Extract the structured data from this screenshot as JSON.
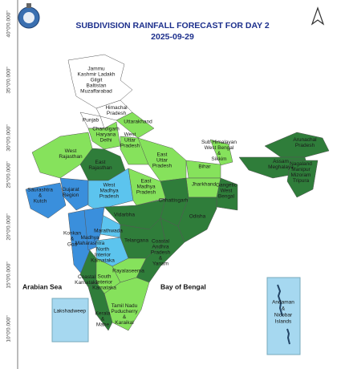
{
  "header": {
    "title": "SUBDIVISION RAINFALL FORECAST FOR DAY 2",
    "date": "2025-09-29"
  },
  "latitude_labels": [
    "40°0'0.000\"",
    "35°0'0.000\"",
    "30°0'0.000\"",
    "25°0'0.000\"",
    "20°0'0.000\"",
    "15°0'0.000\"",
    "10°0'0.000\""
  ],
  "seas": {
    "arabian": "Arabian Sea",
    "bengal": "Bay of Bengal"
  },
  "islands": {
    "lakshadweep": "Lakshadweep",
    "andaman": [
      "Andaman",
      "&",
      "Nicobar",
      "Islands"
    ]
  },
  "regions": [
    {
      "lines": [
        "Jammu",
        "Kashmir Ladakh",
        "Gilgit",
        "Baltistan",
        "Muzaffarabad"
      ]
    },
    {
      "lines": [
        "Himachal",
        "Pradesh"
      ]
    },
    {
      "lines": [
        "Punjab"
      ]
    },
    {
      "lines": [
        "Uttarakhand"
      ]
    },
    {
      "lines": [
        "Chandigarh",
        "Haryana",
        "Delhi"
      ]
    },
    {
      "lines": [
        "West",
        "Uttar",
        "Pradesh"
      ]
    },
    {
      "lines": [
        "West",
        "Rajasthan"
      ]
    },
    {
      "lines": [
        "East",
        "Rajasthan"
      ]
    },
    {
      "lines": [
        "East",
        "Uttar",
        "Pradesh"
      ]
    },
    {
      "lines": [
        "Bihar"
      ]
    },
    {
      "lines": [
        "Sub Himalayan",
        "West Bengal",
        "&",
        "Sikkim"
      ]
    },
    {
      "lines": [
        "Arunachal",
        "Pradesh"
      ]
    },
    {
      "lines": [
        "Assam",
        "Meghalaya"
      ]
    },
    {
      "lines": [
        "Nagaland",
        "Manipur",
        "Mizoram",
        "Tripura"
      ]
    },
    {
      "lines": [
        "Gujarat",
        "Region"
      ]
    },
    {
      "lines": [
        "Saurashtra",
        "&",
        "Kutch"
      ]
    },
    {
      "lines": [
        "West",
        "Madhya",
        "Pradesh"
      ]
    },
    {
      "lines": [
        "East",
        "Madhya",
        "Pradesh"
      ]
    },
    {
      "lines": [
        "Jharkhand"
      ]
    },
    {
      "lines": [
        "Gangetic",
        "West",
        "Bengal"
      ]
    },
    {
      "lines": [
        "Chhattisgarh"
      ]
    },
    {
      "lines": [
        "Odisha"
      ]
    },
    {
      "lines": [
        "Vidarbha"
      ]
    },
    {
      "lines": [
        "Marathwada"
      ]
    },
    {
      "lines": [
        "Konkan",
        "&",
        "Goa"
      ]
    },
    {
      "lines": [
        "Madhya",
        "Maharashtra"
      ]
    },
    {
      "lines": [
        "North",
        "Interior",
        "Karnataka"
      ]
    },
    {
      "lines": [
        "Telangana"
      ]
    },
    {
      "lines": [
        "Coastal",
        "Andhra",
        "Pradesh",
        "&",
        "Yanam"
      ]
    },
    {
      "lines": [
        "Coastal",
        "Karnataka"
      ]
    },
    {
      "lines": [
        "South",
        "Interior",
        "Karnataka"
      ]
    },
    {
      "lines": [
        "Rayalaseema"
      ]
    },
    {
      "lines": [
        "Tamil Nadu",
        "Puducherry",
        "&",
        "Karaikal"
      ]
    },
    {
      "lines": [
        "Kerala",
        "&",
        "Mahe"
      ]
    }
  ]
}
